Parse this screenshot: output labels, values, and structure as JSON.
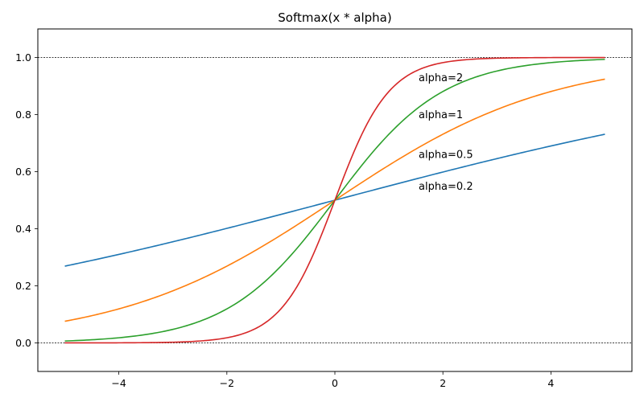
{
  "chart_data": {
    "type": "line",
    "title": "Softmax(x * alpha)",
    "xlabel": "",
    "ylabel": "",
    "xlim": [
      -5.5,
      5.5
    ],
    "ylim": [
      -0.1,
      1.1
    ],
    "x_ticks": [
      -4,
      -2,
      0,
      2,
      4
    ],
    "x_tick_labels": [
      "−4",
      "−2",
      "0",
      "2",
      "4"
    ],
    "y_ticks": [
      0.0,
      0.2,
      0.4,
      0.6,
      0.8,
      1.0
    ],
    "y_tick_labels": [
      "0.0",
      "0.2",
      "0.4",
      "0.6",
      "0.8",
      "1.0"
    ],
    "grid": false,
    "reference_lines": [
      {
        "y": 0.0,
        "style": "dotted",
        "color": "#000000"
      },
      {
        "y": 1.0,
        "style": "dotted",
        "color": "#000000"
      }
    ],
    "series": [
      {
        "alpha": 0.2,
        "color": "#1f77b4",
        "x": [
          -5,
          -4,
          -3,
          -2,
          -1,
          0,
          1,
          2,
          3,
          4,
          5
        ],
        "y": [
          0.269,
          0.31,
          0.354,
          0.401,
          0.45,
          0.5,
          0.55,
          0.599,
          0.646,
          0.69,
          0.731
        ]
      },
      {
        "alpha": 0.5,
        "color": "#ff7f0e",
        "x": [
          -5,
          -4,
          -3,
          -2,
          -1,
          0,
          1,
          2,
          3,
          4,
          5
        ],
        "y": [
          0.076,
          0.119,
          0.182,
          0.269,
          0.378,
          0.5,
          0.622,
          0.731,
          0.818,
          0.881,
          0.924
        ]
      },
      {
        "alpha": 1,
        "color": "#2ca02c",
        "x": [
          -5,
          -4,
          -3,
          -2,
          -1,
          0,
          1,
          2,
          3,
          4,
          5
        ],
        "y": [
          0.007,
          0.018,
          0.047,
          0.119,
          0.269,
          0.5,
          0.731,
          0.881,
          0.953,
          0.982,
          0.993
        ]
      },
      {
        "alpha": 2,
        "color": "#d62728",
        "x": [
          -5,
          -4,
          -3,
          -2,
          -1,
          0,
          1,
          2,
          3,
          4,
          5
        ],
        "y": [
          0.0,
          0.0,
          0.002,
          0.018,
          0.119,
          0.5,
          0.881,
          0.982,
          0.998,
          1.0,
          1.0
        ]
      }
    ],
    "annotations": [
      {
        "text": "alpha=2",
        "x": 1.55,
        "y": 0.93
      },
      {
        "text": "alpha=1",
        "x": 1.55,
        "y": 0.8
      },
      {
        "text": "alpha=0.5",
        "x": 1.55,
        "y": 0.66
      },
      {
        "text": "alpha=0.2",
        "x": 1.55,
        "y": 0.55
      }
    ]
  }
}
